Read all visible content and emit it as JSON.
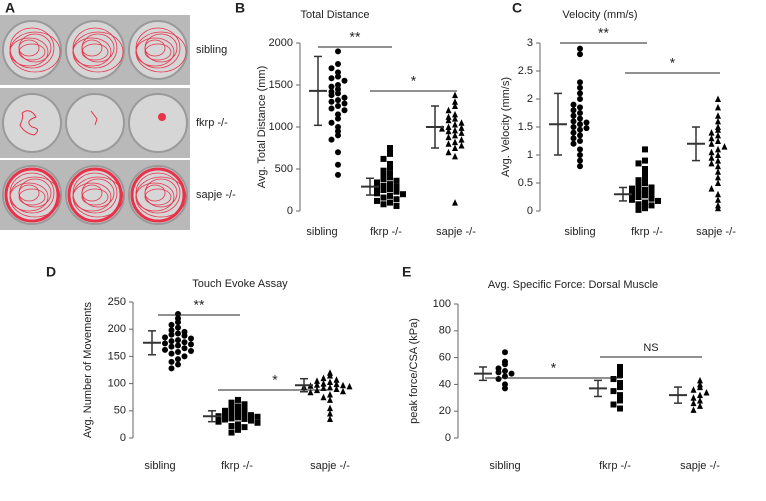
{
  "panel_a": {
    "label": "A",
    "rows": [
      "sibling",
      "fkrp -/-",
      "sapje -/-"
    ]
  },
  "chart_data": [
    {
      "type": "dotplot",
      "label": "B",
      "title": "Total Distance",
      "y_label": "Avg. Total Distance (mm)",
      "categories": [
        "sibling",
        "fkrp -/-",
        "sapje -/-"
      ],
      "ylim": [
        0,
        2000
      ],
      "yticks": [
        0,
        500,
        1000,
        1500,
        2000
      ],
      "color": "#000000",
      "groups": [
        {
          "marker": "circle",
          "mean": 1430,
          "sd": 410,
          "values": [
            1900,
            1750,
            1700,
            1650,
            1600,
            1580,
            1550,
            1500,
            1480,
            1450,
            1420,
            1400,
            1380,
            1350,
            1320,
            1300,
            1280,
            1250,
            1220,
            1200,
            1150,
            1100,
            1050,
            1000,
            950,
            900,
            850,
            700,
            550,
            430
          ]
        },
        {
          "marker": "square",
          "mean": 290,
          "sd": 100,
          "values": [
            750,
            680,
            620,
            560,
            520,
            480,
            450,
            420,
            400,
            380,
            360,
            340,
            320,
            300,
            290,
            280,
            260,
            250,
            230,
            210,
            200,
            180,
            160,
            140,
            120,
            100,
            80,
            60
          ]
        },
        {
          "marker": "triangle",
          "mean": 1000,
          "sd": 250,
          "values": [
            1380,
            1300,
            1250,
            1200,
            1150,
            1120,
            1100,
            1080,
            1050,
            1030,
            1000,
            990,
            980,
            960,
            950,
            930,
            900,
            880,
            850,
            820,
            800,
            780,
            750,
            700,
            650,
            100
          ]
        }
      ],
      "annotations": [
        {
          "text": "**",
          "from": 0,
          "to": 1
        },
        {
          "text": "*",
          "from": 1,
          "to": 2
        }
      ]
    },
    {
      "type": "dotplot",
      "label": "C",
      "title": "Velocity (mm/s)",
      "y_label": "Avg. Velocity (mm/s)",
      "categories": [
        "sibling",
        "fkrp -/-",
        "sapje -/-"
      ],
      "ylim": [
        0,
        3
      ],
      "yticks": [
        0,
        0.5,
        1,
        1.5,
        2,
        2.5,
        3
      ],
      "color": "#000000",
      "groups": [
        {
          "marker": "circle",
          "mean": 1.55,
          "sd": 0.55,
          "values": [
            2.9,
            2.8,
            2.3,
            2.2,
            2.1,
            2.0,
            1.9,
            1.85,
            1.8,
            1.75,
            1.7,
            1.65,
            1.6,
            1.58,
            1.55,
            1.5,
            1.48,
            1.45,
            1.4,
            1.35,
            1.3,
            1.25,
            1.2,
            1.1,
            1.0,
            0.9,
            0.8
          ]
        },
        {
          "marker": "square",
          "mean": 0.3,
          "sd": 0.12,
          "values": [
            1.1,
            0.9,
            0.85,
            0.75,
            0.7,
            0.6,
            0.55,
            0.5,
            0.45,
            0.42,
            0.4,
            0.38,
            0.35,
            0.32,
            0.3,
            0.28,
            0.25,
            0.22,
            0.2,
            0.18,
            0.15,
            0.12,
            0.1,
            0.05,
            0.02
          ]
        },
        {
          "marker": "triangle",
          "mean": 1.2,
          "sd": 0.3,
          "values": [
            2.0,
            1.85,
            1.7,
            1.6,
            1.5,
            1.45,
            1.4,
            1.35,
            1.3,
            1.25,
            1.2,
            1.15,
            1.1,
            1.05,
            1.0,
            0.95,
            0.9,
            0.85,
            0.8,
            0.7,
            0.6,
            0.5,
            0.4,
            0.3,
            0.2,
            0.1,
            0.05
          ]
        }
      ],
      "annotations": [
        {
          "text": "**",
          "from": 0,
          "to": 1
        },
        {
          "text": "*",
          "from": 1,
          "to": 2
        }
      ]
    },
    {
      "type": "dotplot",
      "label": "D",
      "title": "Touch Evoke Assay",
      "y_label": "Avg. Number of Movements",
      "categories": [
        "sibling",
        "fkrp -/-",
        "sapje -/-"
      ],
      "ylim": [
        0,
        250
      ],
      "yticks": [
        0,
        50,
        100,
        150,
        200,
        250
      ],
      "color": "#000000",
      "groups": [
        {
          "marker": "circle",
          "mean": 175,
          "sd": 22,
          "values": [
            228,
            220,
            213,
            208,
            203,
            198,
            195,
            192,
            190,
            188,
            185,
            183,
            180,
            178,
            176,
            174,
            172,
            170,
            168,
            165,
            162,
            160,
            158,
            155,
            150,
            145,
            140,
            135,
            128
          ]
        },
        {
          "marker": "square",
          "mean": 40,
          "sd": 10,
          "values": [
            70,
            65,
            62,
            58,
            55,
            52,
            50,
            48,
            46,
            45,
            44,
            42,
            40,
            39,
            38,
            36,
            35,
            34,
            32,
            30,
            28,
            25,
            22,
            20,
            15,
            10
          ]
        },
        {
          "marker": "triangle",
          "mean": 97,
          "sd": 12,
          "values": [
            120,
            115,
            110,
            107,
            105,
            103,
            100,
            99,
            98,
            97,
            96,
            95,
            94,
            93,
            92,
            90,
            88,
            86,
            84,
            80,
            75,
            70,
            55,
            45,
            35
          ]
        }
      ],
      "annotations": [
        {
          "text": "**",
          "from": 0,
          "to": 1
        },
        {
          "text": "*",
          "from": 1,
          "to": 2
        }
      ]
    },
    {
      "type": "dotplot",
      "label": "E",
      "title": "Avg. Specific Force: Dorsal Muscle",
      "y_label": "peak force/CSA (kPa)",
      "categories": [
        "sibling",
        "fkrp -/-",
        "sapje -/-"
      ],
      "ylim": [
        0,
        100
      ],
      "yticks": [
        0,
        20,
        40,
        60,
        80,
        100
      ],
      "color": "#000000",
      "groups": [
        {
          "marker": "circle",
          "mean": 48,
          "sd": 5,
          "values": [
            64,
            57,
            55,
            52,
            50,
            49,
            48,
            46,
            44,
            40,
            37
          ]
        },
        {
          "marker": "square",
          "mean": 37,
          "sd": 6,
          "values": [
            53,
            50,
            47,
            44,
            41,
            38,
            35,
            32,
            28,
            25,
            22
          ]
        },
        {
          "marker": "triangle",
          "mean": 32,
          "sd": 6,
          "values": [
            43,
            40,
            38,
            36,
            34,
            32,
            30,
            28,
            26,
            24,
            21
          ]
        }
      ],
      "annotations": [
        {
          "text": "*",
          "from": 0,
          "to": 1
        },
        {
          "text": "NS",
          "from": 1,
          "to": 2
        }
      ]
    }
  ]
}
